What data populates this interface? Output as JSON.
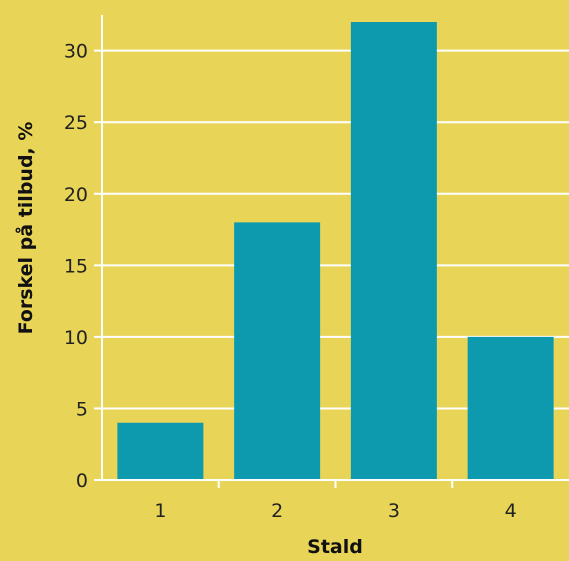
{
  "chart_data": {
    "type": "bar",
    "title": "",
    "xlabel": "Stald",
    "ylabel": "Forskel på tilbud, %",
    "categories": [
      "1",
      "2",
      "3",
      "4"
    ],
    "values": [
      4,
      18,
      32,
      10
    ],
    "ylim": [
      0,
      32
    ],
    "yticks": [
      0,
      5,
      10,
      15,
      20,
      25,
      30
    ],
    "grid": "horizontal",
    "colors": {
      "background": "#e8d558",
      "bar": "#0d9aaf",
      "grid": "#ffffff",
      "axis": "#ffffff"
    }
  }
}
